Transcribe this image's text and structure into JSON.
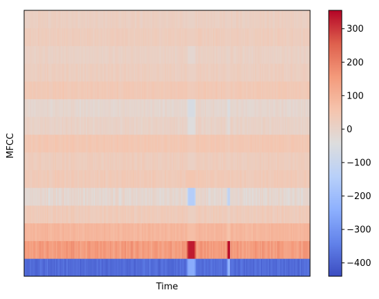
{
  "chart_data": {
    "type": "heatmap",
    "title": "",
    "xlabel": "Time",
    "ylabel": "MFCC",
    "colormap": "coolwarm",
    "n_coefficients": 15,
    "row_order": "bottom-to-top",
    "colorbar": {
      "vmin": -440,
      "vmax": 355,
      "ticks": [
        -400,
        -300,
        -200,
        -100,
        0,
        100,
        200,
        300
      ],
      "tick_labels": [
        "−400",
        "−300",
        "−200",
        "−100",
        "0",
        "100",
        "200",
        "300"
      ]
    },
    "coefficient_mean_values": [
      -380,
      150,
      90,
      30,
      -15,
      35,
      25,
      45,
      5,
      -10,
      40,
      20,
      10,
      25,
      15
    ],
    "coefficient_variation": [
      20,
      25,
      12,
      12,
      20,
      12,
      10,
      10,
      12,
      12,
      10,
      10,
      10,
      10,
      10
    ],
    "events": [
      {
        "time_fraction": 0.585,
        "width_fraction": 0.035,
        "coefficient_values": [
          -250,
          330,
          70,
          15,
          -150,
          50,
          10,
          35,
          -40,
          -60,
          30,
          10,
          -15,
          20,
          5
        ]
      },
      {
        "time_fraction": 0.715,
        "width_fraction": 0.012,
        "coefficient_values": [
          -230,
          350,
          60,
          10,
          -120,
          40,
          15,
          30,
          -30,
          -50,
          30,
          10,
          0,
          20,
          10
        ]
      }
    ],
    "x_ticks": [],
    "y_ticks": [],
    "grid": false
  }
}
